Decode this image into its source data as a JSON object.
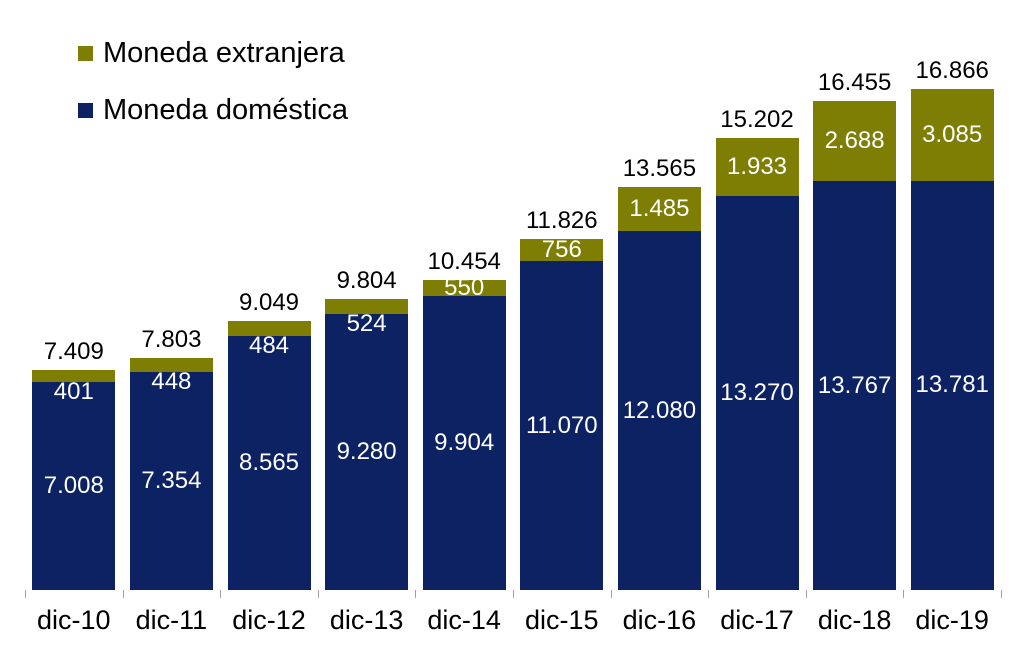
{
  "chart_data": {
    "type": "bar",
    "stacked": true,
    "orientation": "vertical",
    "title": "",
    "xlabel": "",
    "ylabel": "",
    "grid": false,
    "legend_position": "top-left",
    "ylim": [
      0,
      17400
    ],
    "categories": [
      "dic-10",
      "dic-11",
      "dic-12",
      "dic-13",
      "dic-14",
      "dic-15",
      "dic-16",
      "dic-17",
      "dic-18",
      "dic-19"
    ],
    "series": [
      {
        "name": "Moneda extranjera",
        "color": "#7e7e04",
        "values": [
          401,
          448,
          484,
          524,
          550,
          756,
          1485,
          1933,
          2688,
          3085
        ],
        "labels": [
          "401",
          "448",
          "484",
          "524",
          "550",
          "756",
          "1.485",
          "1.933",
          "2.688",
          "3.085"
        ]
      },
      {
        "name": "Moneda doméstica",
        "color": "#0d2262",
        "values": [
          7008,
          7354,
          8565,
          9280,
          9904,
          11070,
          12080,
          13270,
          13767,
          13781
        ],
        "labels": [
          "7.008",
          "7.354",
          "8.565",
          "9.280",
          "9.904",
          "11.070",
          "12.080",
          "13.270",
          "13.767",
          "13.781"
        ]
      }
    ],
    "totals": [
      7409,
      7803,
      9049,
      9804,
      10454,
      11826,
      13565,
      15202,
      16455,
      16866
    ],
    "total_labels": [
      "7.409",
      "7.803",
      "9.049",
      "9.804",
      "10.454",
      "11.826",
      "13.565",
      "15.202",
      "16.455",
      "16.866"
    ]
  },
  "legend": {
    "items": [
      {
        "label": "Moneda extranjera",
        "color": "#7e7e04"
      },
      {
        "label": "Moneda doméstica",
        "color": "#0d2262"
      }
    ]
  },
  "colors": {
    "foreign": "#7e7e04",
    "domestic": "#0d2262",
    "tick": "#a0a0a0",
    "label_dark": "#000000",
    "label_light": "#ffffff",
    "background": "#ffffff"
  }
}
